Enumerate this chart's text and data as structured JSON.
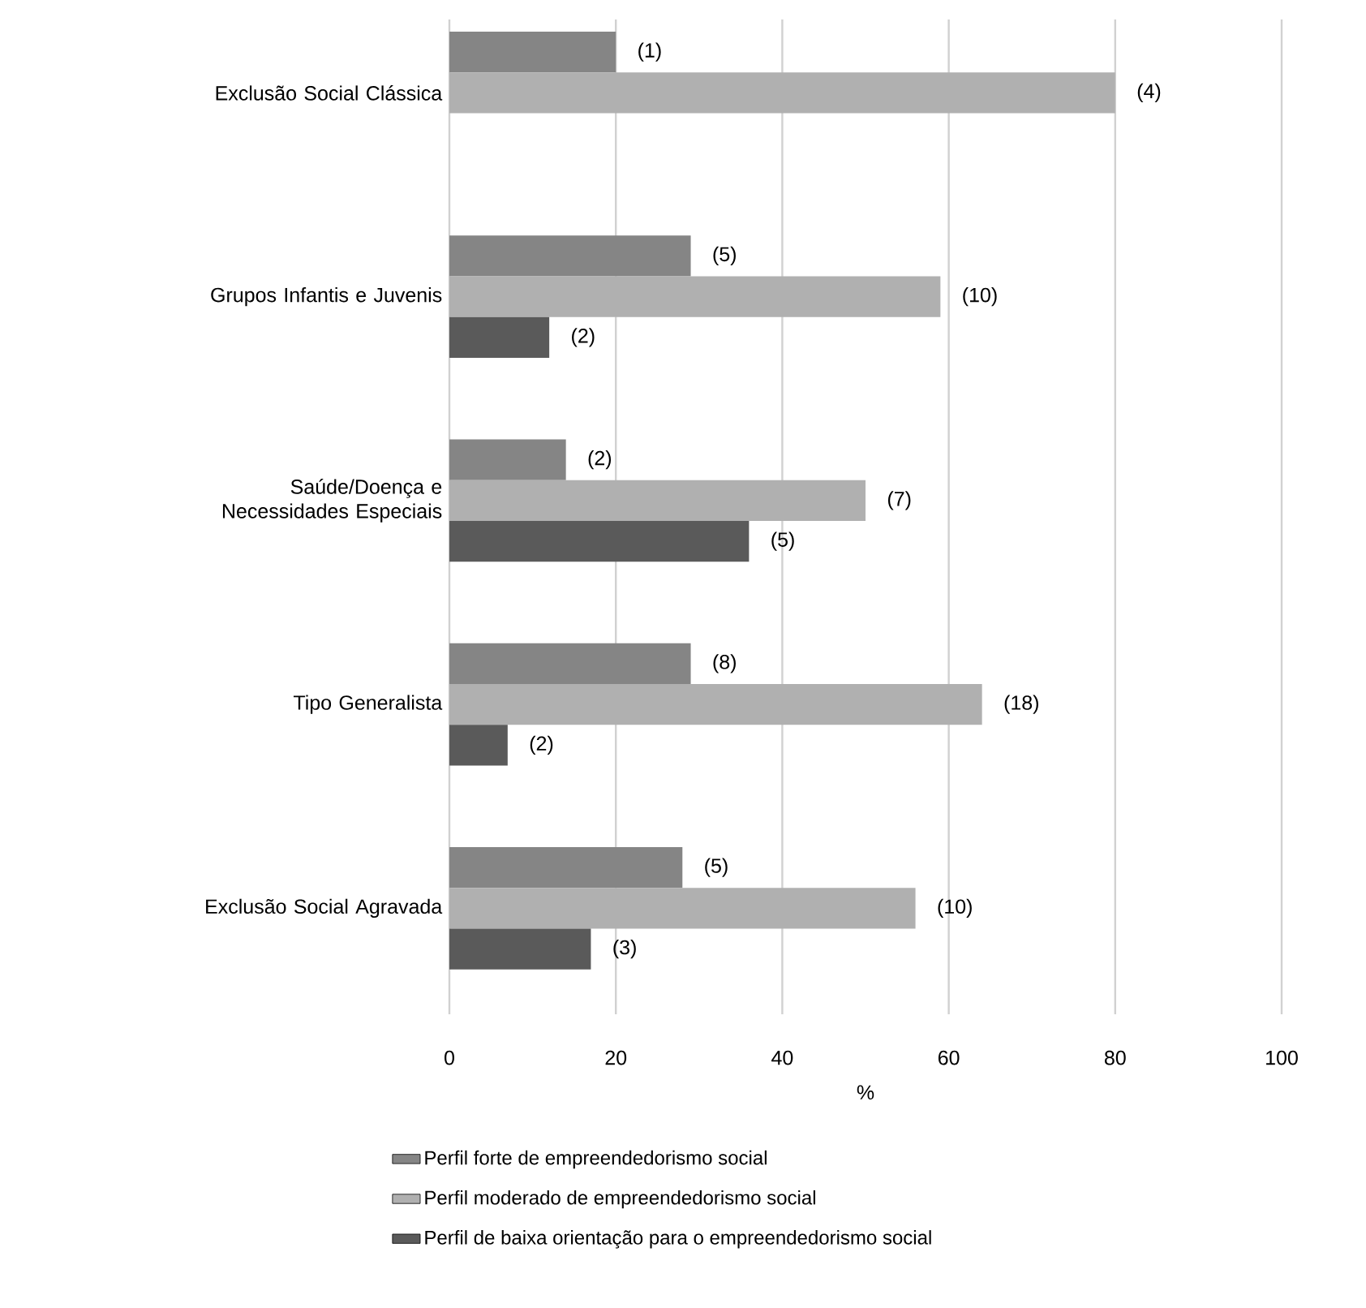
{
  "chart_data": {
    "type": "bar",
    "orientation": "horizontal",
    "xlabel": "%",
    "categories": [
      "Exclusão Social Clássica",
      "Grupos Infantis e Juvenis",
      "Saúde/Doença e Necessidades Especiais",
      "Tipo Generalista",
      "Exclusão Social Agravada"
    ],
    "series": [
      {
        "name": "Perfil forte de empreendedorismo social",
        "color": "#858585",
        "values": [
          20,
          29,
          14,
          29,
          28
        ]
      },
      {
        "name": "Perfil moderado de empreendedorismo social",
        "color": "#b0b0b0",
        "values": [
          80,
          59,
          50,
          64,
          56
        ]
      },
      {
        "name": "Perfil de baixa orientação para o empreendedorismo social",
        "color": "#5a5a5a",
        "values": [
          null,
          12,
          36,
          7,
          17
        ]
      }
    ],
    "annotations": [
      "(1)",
      "(5)",
      "(2)",
      "(8)",
      "(5)",
      "(4)",
      "(10)",
      "(7)",
      "(18)",
      "(10)",
      "(2)",
      "(5)",
      "(2)",
      "(3)"
    ],
    "xlim": [
      0,
      100
    ],
    "xticks": [
      0,
      20,
      40,
      60,
      80,
      100
    ],
    "grid": "x",
    "legend": "bottom"
  }
}
